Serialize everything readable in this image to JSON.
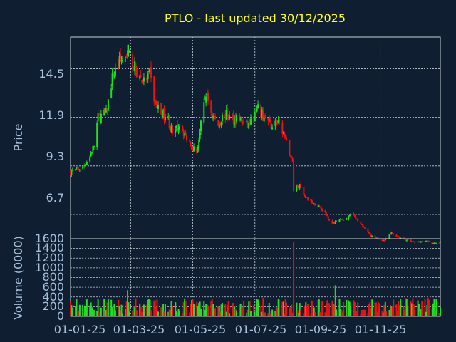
{
  "chart_data": [
    {
      "type": "candlestick",
      "title": "PTLO - last updated 30/12/2025",
      "ylabel": "Price",
      "y_ticks": [
        "6.7",
        "9.3",
        "11.9",
        "14.5"
      ],
      "ylim": [
        5.4,
        16.2
      ],
      "x_ticks": [
        "01-01-25",
        "01-03-25",
        "01-05-25",
        "01-07-25",
        "01-09-25",
        "01-11-25"
      ],
      "xlim": [
        "2025-01-01",
        "2025-12-30"
      ],
      "grid": true,
      "up_color": "#22dd22",
      "down_color": "#ee1111",
      "close_anchors": [
        [
          "2025-01-01",
          9.0
        ],
        [
          "2025-01-08",
          9.1
        ],
        [
          "2025-01-14",
          9.3
        ],
        [
          "2025-01-20",
          9.8
        ],
        [
          "2025-01-24",
          10.4
        ],
        [
          "2025-01-28",
          11.9
        ],
        [
          "2025-02-05",
          12.1
        ],
        [
          "2025-02-11",
          14.0
        ],
        [
          "2025-02-18",
          14.9
        ],
        [
          "2025-02-25",
          15.3
        ],
        [
          "2025-03-01",
          15.1
        ],
        [
          "2025-03-07",
          14.3
        ],
        [
          "2025-03-14",
          13.8
        ],
        [
          "2025-03-20",
          14.2
        ],
        [
          "2025-03-25",
          12.6
        ],
        [
          "2025-04-01",
          12.1
        ],
        [
          "2025-04-07",
          11.8
        ],
        [
          "2025-04-12",
          10.8
        ],
        [
          "2025-04-18",
          11.6
        ],
        [
          "2025-04-24",
          10.9
        ],
        [
          "2025-04-30",
          10.4
        ],
        [
          "2025-05-05",
          10.0
        ],
        [
          "2025-05-08",
          11.1
        ],
        [
          "2025-05-14",
          13.2
        ],
        [
          "2025-05-20",
          12.0
        ],
        [
          "2025-05-26",
          11.5
        ],
        [
          "2025-06-01",
          12.1
        ],
        [
          "2025-06-08",
          11.8
        ],
        [
          "2025-06-15",
          11.9
        ],
        [
          "2025-06-22",
          11.4
        ],
        [
          "2025-06-27",
          11.6
        ],
        [
          "2025-07-04",
          12.3
        ],
        [
          "2025-07-10",
          11.9
        ],
        [
          "2025-07-16",
          11.5
        ],
        [
          "2025-07-22",
          11.6
        ],
        [
          "2025-07-28",
          11.2
        ],
        [
          "2025-08-03",
          10.2
        ],
        [
          "2025-08-07",
          9.5
        ],
        [
          "2025-08-08",
          8.0
        ],
        [
          "2025-08-13",
          8.3
        ],
        [
          "2025-08-20",
          7.6
        ],
        [
          "2025-08-27",
          7.3
        ],
        [
          "2025-09-03",
          7.1
        ],
        [
          "2025-09-10",
          6.6
        ],
        [
          "2025-09-15",
          6.2
        ],
        [
          "2025-09-22",
          6.4
        ],
        [
          "2025-09-30",
          6.5
        ],
        [
          "2025-10-04",
          6.8
        ],
        [
          "2025-10-10",
          6.3
        ],
        [
          "2025-10-16",
          6.0
        ],
        [
          "2025-10-22",
          5.6
        ],
        [
          "2025-10-29",
          5.4
        ],
        [
          "2025-11-05",
          5.3
        ],
        [
          "2025-11-12",
          5.7
        ],
        [
          "2025-11-19",
          5.5
        ],
        [
          "2025-11-26",
          5.35
        ],
        [
          "2025-12-05",
          5.2
        ],
        [
          "2025-12-15",
          5.3
        ],
        [
          "2025-12-22",
          5.15
        ],
        [
          "2025-12-30",
          5.25
        ]
      ]
    },
    {
      "type": "bar",
      "ylabel": "Volume (0000)",
      "y_ticks": [
        "0",
        "200",
        "400",
        "600",
        "800",
        "1000",
        "1200",
        "1400",
        "1600"
      ],
      "ylim": [
        0,
        1600
      ],
      "x_ticks": [
        "01-01-25",
        "01-03-25",
        "01-05-25",
        "01-07-25",
        "01-09-25",
        "01-11-25"
      ],
      "grid": true,
      "typical_range": [
        60,
        380
      ],
      "spikes": [
        [
          "2025-02-26",
          540
        ],
        [
          "2025-08-08",
          1540
        ],
        [
          "2025-08-09",
          620
        ],
        [
          "2025-09-18",
          640
        ],
        [
          "2025-10-25",
          650
        ],
        [
          "2025-11-01",
          540
        ],
        [
          "2025-12-18",
          380
        ]
      ]
    }
  ]
}
